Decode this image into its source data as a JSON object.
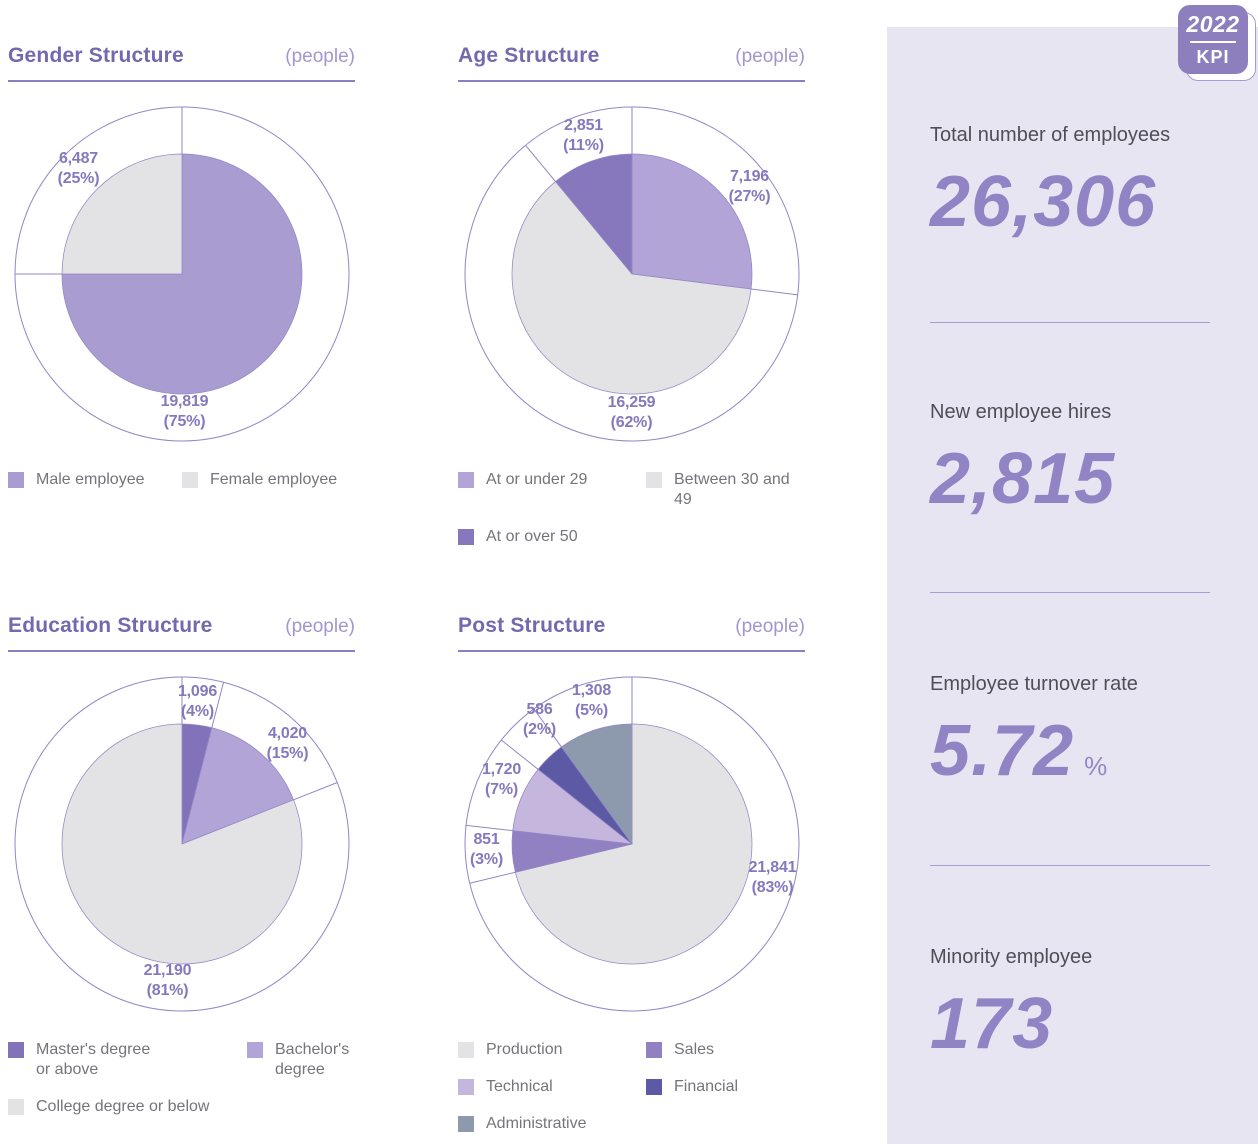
{
  "colors": {
    "accent_purple": "#7468AE",
    "line_purple": "#8C7EC1",
    "label_purple": "#8678BE",
    "panel_background": "#E8E5F2",
    "kpi_number_purple": "#9184C5",
    "badge_purple": "#8D7FBE"
  },
  "chart_data": [
    {
      "type": "pie",
      "title": "Gender Structure",
      "unit": "(people)",
      "slices": [
        {
          "label": "Male employee",
          "value": 19819,
          "value_text": "19,819",
          "pct": 75,
          "color": "#A99CD0",
          "deg": 270,
          "label_pos": [
            3,
            138
          ]
        },
        {
          "label": "Female employee",
          "value": 6487,
          "value_text": "6,487",
          "pct": 25,
          "color": "#E3E3E6",
          "deg": 90,
          "label_pos": [
            -103,
            -105
          ]
        }
      ],
      "legend_rows": [
        [
          0,
          1
        ]
      ],
      "legend_col2": 174
    },
    {
      "type": "pie",
      "title": "Age Structure",
      "unit": "(people)",
      "slices": [
        {
          "label": "At or under 29",
          "value": 7196,
          "value_text": "7,196",
          "pct": 27,
          "color": "#B2A4D6",
          "deg": 97.2,
          "label_pos": [
            118,
            -87
          ]
        },
        {
          "label": "Between 30 and 49",
          "value": 16259,
          "value_text": "16,259",
          "pct": 62,
          "color": "#E3E3E6",
          "deg": 223.2,
          "label_pos": [
            0,
            139
          ]
        },
        {
          "label": "At or over 50",
          "value": 2851,
          "value_text": "2,851",
          "pct": 11,
          "color": "#8778BD",
          "deg": 39.6,
          "label_pos": [
            -48,
            -138
          ]
        }
      ],
      "legend_rows": [
        [
          0,
          1
        ],
        [
          2
        ]
      ],
      "legend_col2": 188
    },
    {
      "type": "pie",
      "title": "Education Structure",
      "unit": "(people)",
      "slices": [
        {
          "label": "Master's degree or above",
          "legend_label": "Master's degree\nor above",
          "value": 1096,
          "value_text": "1,096",
          "pct": 4,
          "color": "#8272BA",
          "deg": 14.4,
          "label_pos": [
            16,
            -142
          ]
        },
        {
          "label": "Bachelor's degree",
          "legend_label": "Bachelor's\ndegree",
          "value": 4020,
          "value_text": "4,020",
          "pct": 15,
          "color": "#B2A4D6",
          "deg": 54,
          "label_pos": [
            106,
            -100
          ]
        },
        {
          "label": "College degree or below",
          "value": 21190,
          "value_text": "21,190",
          "pct": 81,
          "color": "#E3E3E6",
          "deg": 291.6,
          "label_pos": [
            -14,
            137
          ]
        }
      ],
      "legend_rows": [
        [
          0,
          1
        ],
        [
          2
        ]
      ],
      "legend_col2": 239
    },
    {
      "type": "pie",
      "title": "Post Structure",
      "unit": "(people)",
      "slices": [
        {
          "label": "Production",
          "value": 21841,
          "value_text": "21,841",
          "pct": 83,
          "color": "#E3E3E6",
          "deg": 256.4,
          "label_pos": [
            141,
            34
          ]
        },
        {
          "label": "Sales",
          "value": 851,
          "value_text": "851",
          "pct": 3,
          "color": "#9281C2",
          "deg": 20,
          "label_pos": [
            -145,
            6
          ]
        },
        {
          "label": "Technical",
          "value": 1720,
          "value_text": "1,720",
          "pct": 7,
          "color": "#C4B6DD",
          "deg": 32.1,
          "label_pos": [
            -130,
            -64
          ]
        },
        {
          "label": "Financial",
          "value": 586,
          "value_text": "586",
          "pct": 2,
          "color": "#5C59A5",
          "deg": 15.5,
          "label_pos": [
            -92,
            -124
          ]
        },
        {
          "label": "Administrative",
          "value": 1308,
          "value_text": "1,308",
          "pct": 5,
          "color": "#8D9AAD",
          "deg": 36,
          "label_pos": [
            -40,
            -143
          ]
        }
      ],
      "legend_rows": [
        [
          0,
          1
        ],
        [
          2,
          3
        ],
        [
          4
        ]
      ],
      "legend_col2": 188
    }
  ],
  "kpi_panel": {
    "badge": {
      "year": "2022",
      "label": "KPI"
    },
    "items": [
      {
        "label": "Total number of employees",
        "value": "26,306",
        "suffix": ""
      },
      {
        "label": "New employee hires",
        "value": "2,815",
        "suffix": ""
      },
      {
        "label": "Employee turnover rate",
        "value": "5.72",
        "suffix": "%"
      },
      {
        "label": "Minority employee",
        "value": "173",
        "suffix": ""
      }
    ]
  }
}
